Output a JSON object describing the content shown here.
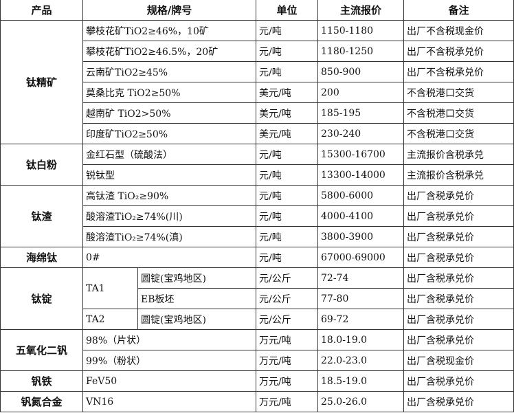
{
  "headers": [
    "产品",
    "规格/牌号",
    "单位",
    "主流报价",
    "备注"
  ],
  "groups": [
    {
      "product": "钛精矿",
      "rows": [
        {
          "spec": "攀枝花矿TiO2≥46%，10矿",
          "unit": "元/吨",
          "price": "1150-1180",
          "note": "出厂不含税现金价"
        },
        {
          "spec": "攀枝花矿TiO2≥46.5%，20矿",
          "unit": "元/吨",
          "price": "1180-1250",
          "note": "出厂不含税承兑价"
        },
        {
          "spec": "云南矿TiO2≥45%",
          "unit": "元/吨",
          "price": "850-900",
          "note": "出厂不含税承兑价"
        },
        {
          "spec": "莫桑比克 TiO2≥50%",
          "unit": "美元/吨",
          "price": "200",
          "note": "不含税港口交货"
        },
        {
          "spec": "越南矿 TiO2>50%",
          "unit": "美元/吨",
          "price": "185-195",
          "note": "不含税港口交货"
        },
        {
          "spec": "印度矿TiO2≥50%",
          "unit": "美元/吨",
          "price": "230-240",
          "note": "不含税港口交货"
        }
      ]
    },
    {
      "product": "钛白粉",
      "rows": [
        {
          "spec": "金红石型（硫酸法）",
          "unit": "元/吨",
          "price": "15300-16700",
          "note": "主流报价含税承兑"
        },
        {
          "spec": "锐钛型",
          "unit": "元/吨",
          "price": "13300-14000",
          "note": "主流报价含税承兑"
        }
      ]
    },
    {
      "product": "钛渣",
      "rows": [
        {
          "spec": "高钛渣 TiO₂≥90%",
          "unit": "元/吨",
          "price": "5800-6000",
          "note": "出厂含税承兑价"
        },
        {
          "spec": "酸溶渣TiO₂≥74%(川)",
          "unit": "元/吨",
          "price": "4000-4100",
          "note": "出厂含税承兑价"
        },
        {
          "spec": "酸溶渣TiO₂≥74%(滇)",
          "unit": "元/吨",
          "price": "3800-3900",
          "note": "出厂含税承兑价"
        }
      ]
    },
    {
      "product": "海绵钛",
      "rows": [
        {
          "spec": "0#",
          "unit": "元/吨",
          "price": "67000-69000",
          "note": "出厂含税承兑价"
        }
      ]
    },
    {
      "product": "钛锭",
      "rows": [
        {
          "grade": "TA1",
          "grade_span": 2,
          "spec": "圆锭(宝鸡地区)",
          "unit": "元/公斤",
          "price": "72-74",
          "note": "出厂含税承兑价"
        },
        {
          "spec": "EB板坯",
          "unit": "元/公斤",
          "price": "77-80",
          "note": "出厂含税承兑价"
        },
        {
          "grade": "TA2",
          "grade_span": 1,
          "spec": "圆锭(宝鸡地区)",
          "unit": "元/公斤",
          "price": "69-72",
          "note": "出厂含税承兑价"
        }
      ]
    },
    {
      "product": "五氧化二钒",
      "rows": [
        {
          "spec": "98%（片状）",
          "unit": "万元/吨",
          "price": "18.0-19.0",
          "note": "出厂含税承兑价"
        },
        {
          "spec": "99%（粉状）",
          "unit": "万元/吨",
          "price": "22.0-23.0",
          "note": "出厂含税现金价"
        }
      ]
    },
    {
      "product": "钒铁",
      "rows": [
        {
          "spec": "FeV50",
          "unit": "万元/吨",
          "price": "18.5-19.0",
          "note": "出厂含税承兑价"
        }
      ]
    },
    {
      "product": "钒氮合金",
      "rows": [
        {
          "spec": "VN16",
          "unit": "万元/吨",
          "price": "25.0-26.0",
          "note": "出厂含税承兑价"
        }
      ]
    }
  ]
}
